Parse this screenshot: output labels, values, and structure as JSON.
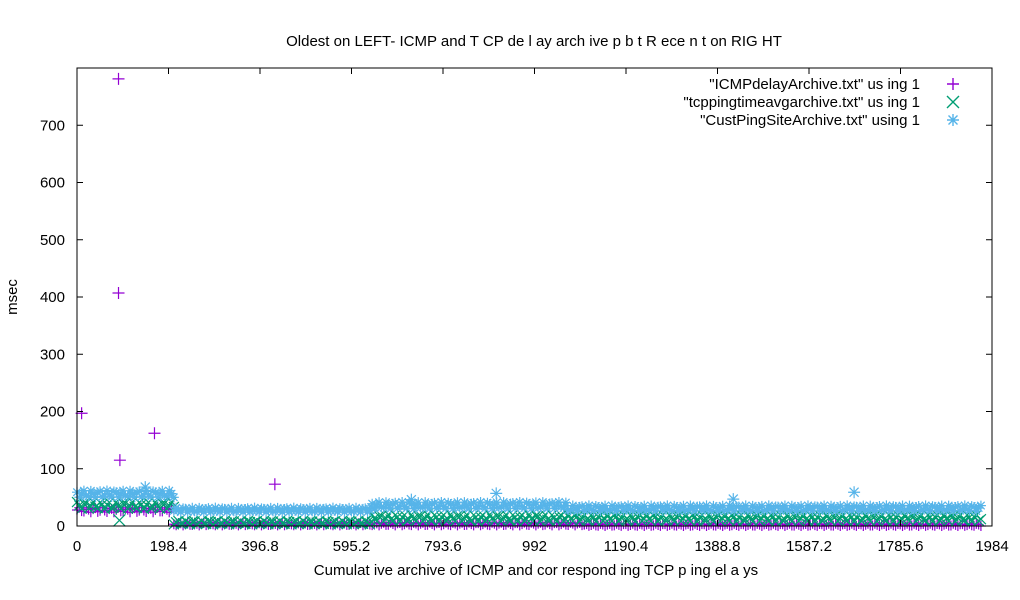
{
  "chart_data": {
    "type": "scatter",
    "title": "Oldest on LEFT- ICMP and T CP de l ay arch ive p b t  R  ece n t on RIG  HT",
    "xlabel": "Cumulat ive archive of ICMP and cor respond ing TCP p ing  el a ys",
    "ylabel": "msec",
    "xlim": [
      0,
      1984
    ],
    "ylim": [
      0,
      800
    ],
    "xticks": [
      "0",
      "198.4",
      "396.8",
      "595.2",
      "793.6",
      "992",
      "1190.4",
      "1388.8",
      "1587.2",
      "1785.6",
      "1984"
    ],
    "yticks": [
      "0",
      "100",
      "200",
      "300",
      "400",
      "500",
      "600",
      "700"
    ],
    "legend_position": "top-right",
    "series": [
      {
        "name": "\"ICMPdelayArchive.txt\" us ing 1",
        "marker": "plus",
        "color": "#9400d3",
        "outliers": [
          [
            90,
            781
          ],
          [
            90,
            407
          ],
          [
            10,
            197
          ],
          [
            93,
            115
          ],
          [
            168,
            162
          ],
          [
            429,
            73
          ]
        ],
        "bands": [
          {
            "x": [
              0,
              210
            ],
            "y": [
              24,
              32
            ]
          },
          {
            "x": [
              210,
              1100
            ],
            "y": [
              1,
              6
            ]
          },
          {
            "x": [
              1100,
              1960
            ],
            "y": [
              0,
              4
            ]
          }
        ]
      },
      {
        "name": "\"tcppingtimeavgarchive.txt\" us ing 1",
        "marker": "x",
        "color": "#009e73",
        "outliers": [
          [
            92,
            10
          ]
        ],
        "bands": [
          {
            "x": [
              0,
              210
            ],
            "y": [
              30,
              42
            ]
          },
          {
            "x": [
              210,
              640
            ],
            "y": [
              3,
              9
            ]
          },
          {
            "x": [
              640,
              1960
            ],
            "y": [
              8,
              20
            ]
          }
        ]
      },
      {
        "name": "\"CustPingSiteArchive.txt\" using  1",
        "marker": "star",
        "color": "#56b4e9",
        "outliers": [
          [
            148,
            68
          ],
          [
            909,
            57
          ],
          [
            1423,
            47
          ],
          [
            1685,
            59
          ],
          [
            725,
            46
          ]
        ],
        "bands": [
          {
            "x": [
              0,
              210
            ],
            "y": [
              50,
              62
            ]
          },
          {
            "x": [
              210,
              640
            ],
            "y": [
              24,
              32
            ]
          },
          {
            "x": [
              640,
              1060
            ],
            "y": [
              30,
              42
            ]
          },
          {
            "x": [
              1060,
              1960
            ],
            "y": [
              26,
              36
            ]
          }
        ]
      }
    ]
  }
}
